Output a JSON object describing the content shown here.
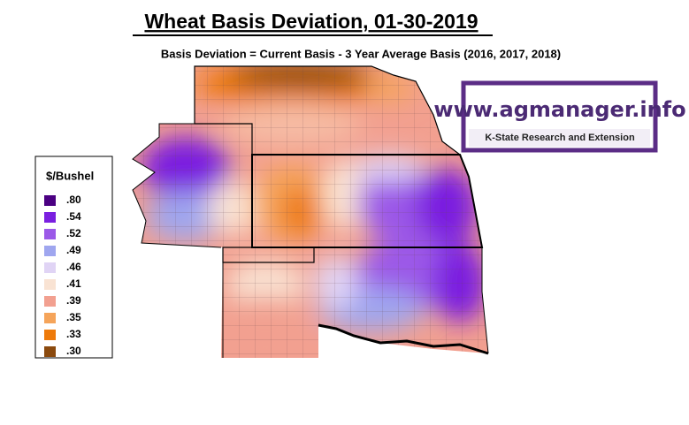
{
  "header": {
    "title": "Wheat Basis Deviation, 01-30-2019",
    "subtitle": "Basis Deviation = Current Basis - 3 Year Average Basis (2016, 2017, 2018)"
  },
  "logo": {
    "site": "www.agmanager.info",
    "org": "K-State Research and Extension"
  },
  "legend": {
    "title": "$/Bushel",
    "items": [
      {
        "label": ".80",
        "color": "#4b0082"
      },
      {
        "label": ".54",
        "color": "#7a1fe0"
      },
      {
        "label": ".52",
        "color": "#9b59e8"
      },
      {
        "label": ".49",
        "color": "#9fa6ef"
      },
      {
        "label": ".46",
        "color": "#e0d4f5"
      },
      {
        "label": ".41",
        "color": "#f9e3d3"
      },
      {
        "label": ".39",
        "color": "#f2a090"
      },
      {
        "label": ".35",
        "color": "#f5a45a"
      },
      {
        "label": ".33",
        "color": "#ee7a0a"
      },
      {
        "label": ".30",
        "color": "#8b4a0e"
      }
    ]
  }
}
